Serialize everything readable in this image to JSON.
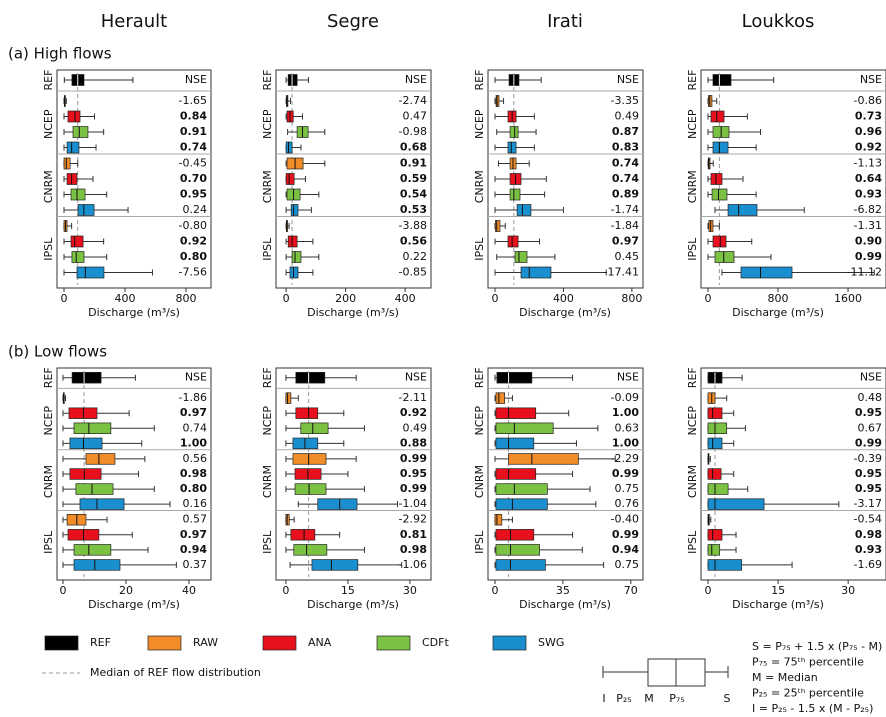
{
  "legend": [
    {
      "name": "REF",
      "color": "#000000"
    },
    {
      "name": "RAW",
      "color": "#f28c28"
    },
    {
      "name": "ANA",
      "color": "#e8101c"
    },
    {
      "name": "CDFt",
      "color": "#7cc242"
    },
    {
      "name": "SWG",
      "color": "#1a8fd0"
    }
  ],
  "median_label": "Median of REF flow distribution",
  "key": {
    "labels": [
      "I",
      "P₂₅",
      "M",
      "P₇₅",
      "S"
    ],
    "lines": [
      "S  = P₇₅ + 1.5 x (P₇₅ - M)",
      "P₇₅ = 75ᵗʰ percentile",
      "M  = Median",
      "P₂₅ = 25ᵗʰ percentile",
      "I   = P₂₅ - 1.5 x (M - P₂₅)"
    ]
  },
  "chart_data": [
    {
      "type": "box",
      "title": "Herault",
      "row_label": "(a) High flows",
      "xlabel": "Discharge (m³/s)",
      "xlim": [
        -46,
        964
      ],
      "xticks": [
        0,
        400,
        800
      ],
      "groups": [
        "REF",
        "NCEP",
        "CNRM",
        "IPSL"
      ],
      "nse_header": "NSE",
      "ref": [
        2,
        52,
        90,
        131,
        452
      ],
      "boxes": [
        [
          0,
          2,
          4,
          8,
          15
        ],
        [
          0,
          26,
          72,
          105,
          200
        ],
        [
          0,
          59,
          100,
          157,
          260
        ],
        [
          0,
          20,
          50,
          98,
          210
        ],
        [
          0,
          0,
          15,
          40,
          90
        ],
        [
          0,
          20,
          50,
          85,
          190
        ],
        [
          0,
          46,
          85,
          138,
          280
        ],
        [
          0,
          92,
          130,
          197,
          420
        ],
        [
          0,
          0,
          10,
          20,
          50
        ],
        [
          0,
          46,
          70,
          125,
          260
        ],
        [
          0,
          52,
          80,
          131,
          280
        ],
        [
          0,
          85,
          140,
          262,
          580
        ]
      ],
      "nse": [
        "-1.65",
        "0.84",
        "0.91",
        "0.74",
        "-0.45",
        "0.70",
        "0.95",
        "0.24",
        "-0.80",
        "0.92",
        "0.80",
        "-7.56"
      ],
      "nse_bold": [
        false,
        true,
        true,
        true,
        false,
        true,
        true,
        false,
        false,
        true,
        true,
        false
      ]
    },
    {
      "type": "box",
      "title": "Segre",
      "xlabel": "Discharge (m³/s)",
      "xlim": [
        -34,
        487
      ],
      "xticks": [
        0,
        200,
        400
      ],
      "groups": [
        "REF",
        "NCEP",
        "CNRM",
        "IPSL"
      ],
      "nse_header": "NSE",
      "ref": [
        0,
        7,
        20,
        37,
        75
      ],
      "boxes": [
        [
          0,
          1,
          3,
          6,
          15
        ],
        [
          0,
          3,
          13,
          24,
          55
        ],
        [
          5,
          37,
          55,
          74,
          130
        ],
        [
          0,
          0,
          8,
          20,
          50
        ],
        [
          0,
          3,
          30,
          57,
          130
        ],
        [
          0,
          0,
          10,
          27,
          65
        ],
        [
          0,
          3,
          25,
          47,
          110
        ],
        [
          0,
          17,
          25,
          40,
          85
        ],
        [
          0,
          1,
          2,
          5,
          10
        ],
        [
          0,
          7,
          20,
          37,
          90
        ],
        [
          0,
          20,
          30,
          50,
          110
        ],
        [
          0,
          13,
          25,
          40,
          90
        ]
      ],
      "nse": [
        "-2.74",
        "0.47",
        "-0.98",
        "0.68",
        "0.91",
        "0.59",
        "0.54",
        "0.53",
        "-3.88",
        "0.56",
        "0.22",
        "-0.85"
      ],
      "nse_bold": [
        false,
        false,
        false,
        true,
        true,
        true,
        true,
        true,
        false,
        true,
        false,
        false
      ]
    },
    {
      "type": "box",
      "title": "Irati",
      "xlabel": "Discharge (m³/s)",
      "xlim": [
        -41,
        865
      ],
      "xticks": [
        0,
        400,
        800
      ],
      "groups": [
        "REF",
        "NCEP",
        "CNRM",
        "IPSL"
      ],
      "nse_header": "NSE",
      "ref": [
        0,
        82,
        110,
        140,
        270
      ],
      "boxes": [
        [
          0,
          6,
          12,
          23,
          50
        ],
        [
          0,
          76,
          100,
          123,
          230
        ],
        [
          10,
          88,
          115,
          135,
          240
        ],
        [
          0,
          76,
          95,
          123,
          230
        ],
        [
          20,
          88,
          105,
          123,
          200
        ],
        [
          0,
          88,
          120,
          152,
          300
        ],
        [
          0,
          88,
          110,
          146,
          290
        ],
        [
          0,
          129,
          160,
          210,
          400
        ],
        [
          0,
          2,
          10,
          29,
          60
        ],
        [
          0,
          76,
          100,
          135,
          260
        ],
        [
          10,
          117,
          140,
          187,
          350
        ],
        [
          0,
          152,
          200,
          327,
          650
        ]
      ],
      "nse": [
        "-3.35",
        "0.49",
        "0.87",
        "0.83",
        "0.74",
        "0.74",
        "0.89",
        "-1.74",
        "-1.84",
        "0.97",
        "0.45",
        "-17.41"
      ],
      "nse_bold": [
        false,
        false,
        true,
        true,
        true,
        true,
        true,
        false,
        false,
        true,
        false,
        false
      ]
    },
    {
      "type": "box",
      "title": "Loukkos",
      "xlabel": "Discharge (m³/s)",
      "xlim": [
        -80,
        2034
      ],
      "xticks": [
        0,
        800,
        1600
      ],
      "groups": [
        "REF",
        "NCEP",
        "CNRM",
        "IPSL"
      ],
      "nse_header": "NSE",
      "ref": [
        0,
        57,
        130,
        263,
        750
      ],
      "boxes": [
        [
          0,
          5,
          20,
          45,
          100
        ],
        [
          0,
          34,
          100,
          183,
          450
        ],
        [
          0,
          57,
          150,
          240,
          600
        ],
        [
          0,
          57,
          130,
          229,
          550
        ],
        [
          0,
          3,
          10,
          23,
          60
        ],
        [
          0,
          34,
          90,
          160,
          400
        ],
        [
          0,
          46,
          120,
          217,
          550
        ],
        [
          80,
          229,
          350,
          560,
          1100
        ],
        [
          0,
          10,
          30,
          57,
          130
        ],
        [
          0,
          57,
          140,
          206,
          500
        ],
        [
          0,
          80,
          180,
          297,
          720
        ],
        [
          160,
          377,
          600,
          960,
          1900
        ]
      ],
      "nse": [
        "-0.86",
        "0.73",
        "0.96",
        "0.92",
        "-1.13",
        "0.64",
        "0.93",
        "-6.82",
        "-1.31",
        "0.90",
        "0.99",
        "-11.12"
      ],
      "nse_bold": [
        false,
        true,
        true,
        true,
        false,
        true,
        true,
        false,
        false,
        true,
        true,
        false
      ]
    },
    {
      "type": "box",
      "row_label": "(b) Low flows",
      "xlabel": "Discharge (m³/s)",
      "xlim": [
        -1.9,
        47
      ],
      "xticks": [
        0,
        20,
        40
      ],
      "groups": [
        "REF",
        "NCEP",
        "CNRM",
        "IPSL"
      ],
      "nse_header": "NSE",
      "ref": [
        0,
        2.9,
        6.7,
        12.1,
        23
      ],
      "boxes": [
        [
          0,
          0.1,
          0.2,
          0.4,
          0.8
        ],
        [
          0,
          1.9,
          6.5,
          10.8,
          21
        ],
        [
          0,
          3.5,
          8.2,
          15.2,
          29
        ],
        [
          0,
          2.2,
          6.5,
          12.4,
          25
        ],
        [
          0,
          7.3,
          11.4,
          16.5,
          26
        ],
        [
          0,
          2.2,
          6.8,
          12.1,
          24
        ],
        [
          0,
          4.1,
          9.2,
          15.9,
          29
        ],
        [
          0,
          5.4,
          10.8,
          19.4,
          34
        ],
        [
          0,
          1.3,
          4.4,
          7.3,
          14
        ],
        [
          0,
          1.6,
          6.5,
          11.4,
          22
        ],
        [
          0,
          3.5,
          8.2,
          15.2,
          27
        ],
        [
          0,
          3.5,
          10.1,
          18.1,
          36
        ]
      ],
      "nse": [
        "-1.86",
        "0.97",
        "0.74",
        "1.00",
        "0.56",
        "0.98",
        "0.80",
        "0.16",
        "0.57",
        "0.97",
        "0.94",
        "0.37"
      ],
      "nse_bold": [
        false,
        true,
        false,
        true,
        false,
        true,
        true,
        false,
        false,
        true,
        true,
        false
      ]
    },
    {
      "type": "box",
      "xlabel": "Discharge (m³/s)",
      "xlim": [
        -2.4,
        35.1
      ],
      "xticks": [
        0,
        15,
        30
      ],
      "groups": [
        "REF",
        "NCEP",
        "CNRM",
        "IPSL"
      ],
      "nse_header": "NSE",
      "ref": [
        0,
        2.4,
        5.5,
        9.4,
        17
      ],
      "boxes": [
        [
          0,
          0,
          0.4,
          1.2,
          3
        ],
        [
          0,
          2.4,
          5.5,
          7.7,
          14
        ],
        [
          0,
          3.6,
          6.5,
          10.2,
          19
        ],
        [
          0,
          1.7,
          4.6,
          7.7,
          14
        ],
        [
          0,
          1.7,
          5.5,
          9.7,
          17
        ],
        [
          0,
          2.2,
          5.3,
          8.5,
          15
        ],
        [
          0,
          2.2,
          5.6,
          9.7,
          19
        ],
        [
          3,
          7.7,
          13,
          17.2,
          27
        ],
        [
          0,
          0,
          0.3,
          0.8,
          2
        ],
        [
          0,
          1.2,
          4.4,
          7,
          13
        ],
        [
          0,
          1.9,
          5,
          9.9,
          19
        ],
        [
          1,
          6.3,
          11,
          17.4,
          28
        ]
      ],
      "nse": [
        "-2.11",
        "0.92",
        "0.49",
        "0.88",
        "0.99",
        "0.95",
        "0.99",
        "-1.04",
        "-2.92",
        "0.81",
        "0.98",
        "-1.06"
      ],
      "nse_bold": [
        false,
        true,
        false,
        true,
        true,
        true,
        true,
        false,
        false,
        true,
        true,
        false
      ]
    },
    {
      "type": "box",
      "xlabel": "Discharge (m³/s)",
      "xlim": [
        -3.6,
        76.3
      ],
      "xticks": [
        0,
        35,
        70
      ],
      "groups": [
        "REF",
        "NCEP",
        "CNRM",
        "IPSL"
      ],
      "nse_header": "NSE",
      "ref": [
        0,
        1,
        7,
        19,
        40
      ],
      "boxes": [
        [
          0,
          0.5,
          2,
          5,
          9
        ],
        [
          0,
          0.5,
          7,
          21,
          38
        ],
        [
          0,
          0.5,
          10,
          30,
          53
        ],
        [
          0,
          0.5,
          7,
          20,
          42
        ],
        [
          0,
          7,
          19,
          43,
          62
        ],
        [
          0,
          0.5,
          7,
          21,
          40
        ],
        [
          0,
          0.5,
          10,
          27,
          49
        ],
        [
          0,
          0.5,
          9,
          27,
          52
        ],
        [
          0,
          0,
          1,
          3.5,
          9
        ],
        [
          0,
          0.5,
          8,
          20,
          40
        ],
        [
          0,
          0.5,
          8,
          23,
          45
        ],
        [
          0,
          0.5,
          8,
          26,
          56
        ]
      ],
      "nse": [
        "-0.09",
        "1.00",
        "0.63",
        "1.00",
        "-2.29",
        "0.99",
        "0.75",
        "0.76",
        "-0.40",
        "0.99",
        "0.94",
        "0.75"
      ],
      "nse_bold": [
        false,
        true,
        false,
        true,
        false,
        true,
        false,
        false,
        false,
        true,
        true,
        false
      ]
    },
    {
      "type": "box",
      "xlabel": "Discharge (m³/s)",
      "xlim": [
        -1.5,
        38.1
      ],
      "xticks": [
        0,
        15,
        30
      ],
      "groups": [
        "REF",
        "NCEP",
        "CNRM",
        "IPSL"
      ],
      "nse_header": "NSE",
      "ref": [
        0,
        0,
        1.5,
        3,
        7.3
      ],
      "boxes": [
        [
          0,
          0,
          0.8,
          1.5,
          4
        ],
        [
          0,
          0,
          1,
          3,
          5.5
        ],
        [
          0,
          0,
          1.5,
          4,
          8
        ],
        [
          0,
          0,
          1,
          3,
          5.5
        ],
        [
          0,
          0,
          0.1,
          0.2,
          0.5
        ],
        [
          0,
          0,
          1,
          2.8,
          5.5
        ],
        [
          0,
          0,
          1.5,
          4.3,
          8.5
        ],
        [
          0,
          0,
          1.5,
          12,
          28
        ],
        [
          0,
          0,
          0.1,
          0.3,
          0.6
        ],
        [
          0,
          0,
          1,
          3,
          6
        ],
        [
          0,
          0,
          0.8,
          2.5,
          6
        ],
        [
          0,
          0,
          1.5,
          7.2,
          18
        ]
      ],
      "nse": [
        "0.48",
        "0.95",
        "0.67",
        "0.99",
        "-0.39",
        "0.95",
        "0.95",
        "-3.17",
        "-0.54",
        "0.98",
        "0.93",
        "-1.69"
      ],
      "nse_bold": [
        false,
        true,
        false,
        true,
        false,
        true,
        true,
        false,
        false,
        true,
        true,
        false
      ]
    }
  ]
}
